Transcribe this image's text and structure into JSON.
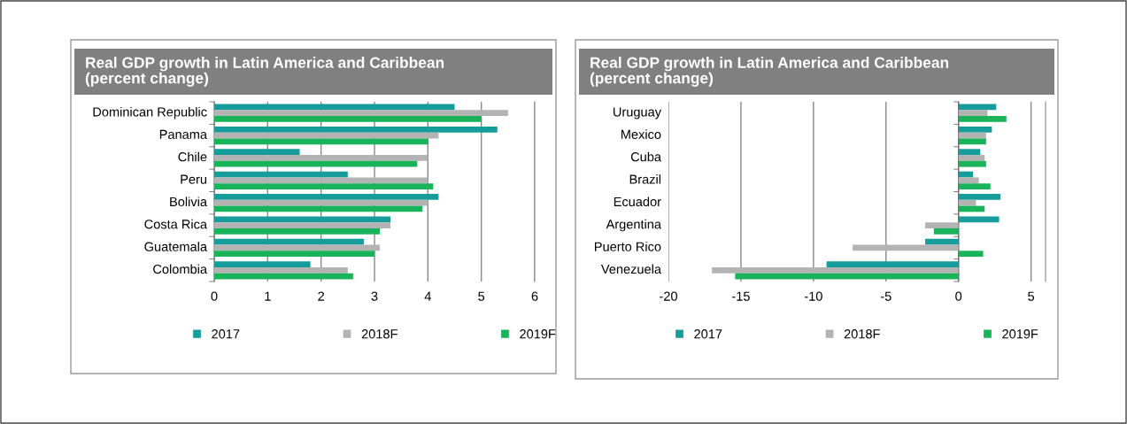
{
  "chart_data": [
    {
      "type": "bar",
      "orientation": "horizontal",
      "title": "Real GDP growth in Latin America and Caribbean\n(percent change)",
      "categories": [
        "Dominican Republic",
        "Panama",
        "Chile",
        "Peru",
        "Bolivia",
        "Costa Rica",
        "Guatemala",
        "Colombia"
      ],
      "series": [
        {
          "name": "2017",
          "color": "#179c9c",
          "values": [
            4.5,
            5.3,
            1.6,
            2.5,
            4.2,
            3.3,
            2.8,
            1.8
          ]
        },
        {
          "name": "2018F",
          "color": "#b3b3b3",
          "values": [
            5.5,
            4.2,
            4.0,
            4.0,
            4.0,
            3.3,
            3.1,
            2.5
          ]
        },
        {
          "name": "2019F",
          "color": "#19b35a",
          "values": [
            5.0,
            4.0,
            3.8,
            4.1,
            3.9,
            3.1,
            3.0,
            2.6
          ]
        }
      ],
      "xlim": [
        0,
        6
      ],
      "xticks": [
        0,
        1,
        2,
        3,
        4,
        5,
        6
      ],
      "grid": "x",
      "legend": "bottom"
    },
    {
      "type": "bar",
      "orientation": "horizontal",
      "title": "Real GDP growth in Latin America and Caribbean\n(percent change)",
      "categories": [
        "Uruguay",
        "Mexico",
        "Cuba",
        "Brazil",
        "Ecuador",
        "Argentina",
        "Puerto Rico",
        "Venezuela"
      ],
      "series": [
        {
          "name": "2017",
          "color": "#179c9c",
          "values": [
            2.6,
            2.3,
            1.5,
            1.0,
            2.9,
            2.8,
            -2.3,
            -9.1
          ]
        },
        {
          "name": "2018F",
          "color": "#b3b3b3",
          "values": [
            2.0,
            1.9,
            1.8,
            1.4,
            1.2,
            -2.3,
            -7.3,
            -17.0
          ]
        },
        {
          "name": "2019F",
          "color": "#19b35a",
          "values": [
            3.3,
            1.9,
            1.9,
            2.2,
            1.8,
            -1.7,
            1.7,
            -15.4
          ]
        }
      ],
      "xlim": [
        -20,
        6
      ],
      "xticks": [
        -20,
        -15,
        -10,
        -5,
        0,
        5
      ],
      "grid": "x",
      "legend": "bottom"
    }
  ]
}
